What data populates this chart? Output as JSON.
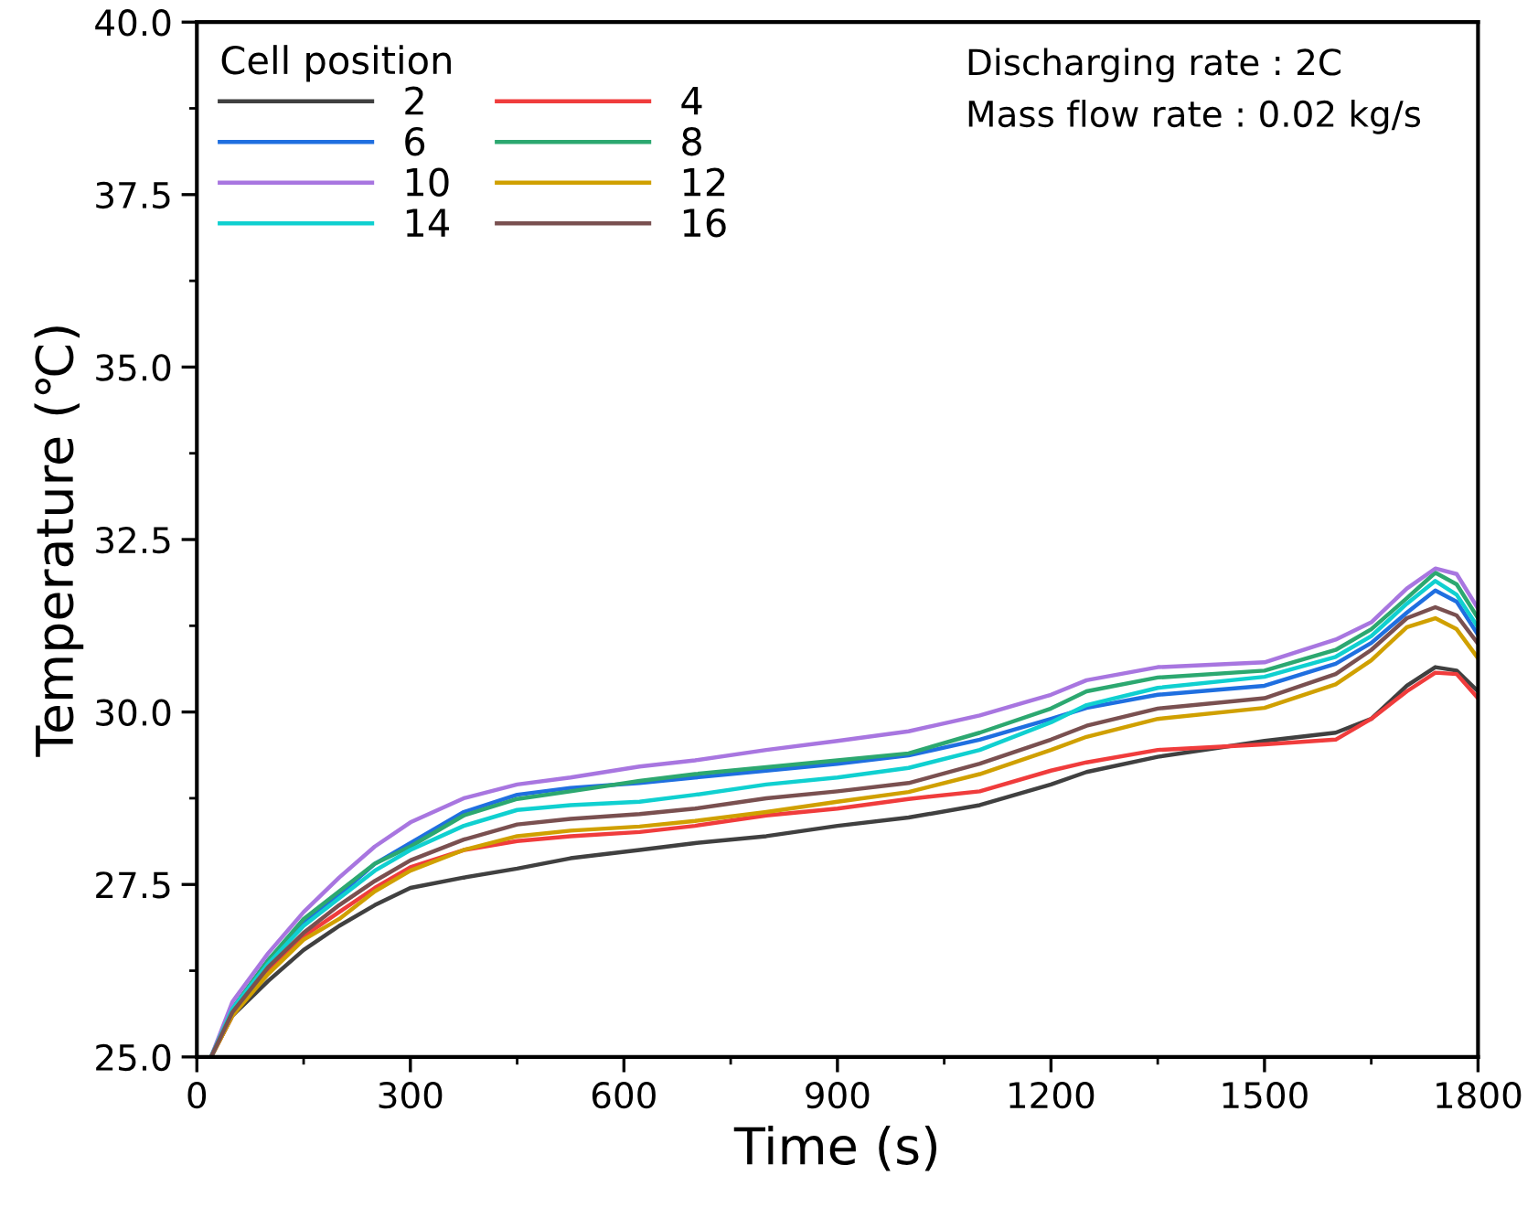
{
  "chart_data": {
    "type": "line",
    "xlabel": "Time (s)",
    "ylabel": "Temperature (℃)",
    "legend_title": "Cell position",
    "legend": "top left",
    "grid": false,
    "marker": "none",
    "line_style": "solid",
    "x": [
      20,
      50,
      100,
      150,
      200,
      250,
      300,
      375,
      450,
      525,
      622,
      700,
      800,
      900,
      1000,
      1100,
      1200,
      1250,
      1350,
      1500,
      1600,
      1650,
      1700,
      1740,
      1770,
      1800
    ],
    "xlim": [
      0,
      1800
    ],
    "xticks": [
      0,
      300,
      600,
      900,
      1200,
      1500,
      1800
    ],
    "ylim": [
      25.0,
      40.0
    ],
    "yticks": [
      {
        "value": 25,
        "label": "25.0"
      },
      27.5,
      {
        "value": 30,
        "label": "30.0"
      },
      32.5,
      {
        "value": 35,
        "label": "35.0"
      },
      37.5,
      {
        "value": 40,
        "label": "40.0"
      }
    ],
    "annotations": [
      "Discharging rate : 2C",
      "Mass flow rate : 0.02 kg/s"
    ],
    "series": [
      {
        "name": "2",
        "color": "#404040",
        "values": [
          25.0,
          25.6,
          26.1,
          26.55,
          26.9,
          27.2,
          27.45,
          27.6,
          27.73,
          27.88,
          28.0,
          28.1,
          28.2,
          28.35,
          28.47,
          28.65,
          28.95,
          29.13,
          29.35,
          29.58,
          29.7,
          29.9,
          30.38,
          30.65,
          30.6,
          30.3
        ]
      },
      {
        "name": "4",
        "color": "#f03c3c",
        "values": [
          25.0,
          25.6,
          26.25,
          26.75,
          27.1,
          27.45,
          27.75,
          28.0,
          28.13,
          28.2,
          28.26,
          28.35,
          28.5,
          28.6,
          28.74,
          28.85,
          29.15,
          29.27,
          29.45,
          29.53,
          29.6,
          29.9,
          30.3,
          30.57,
          30.55,
          30.2
        ]
      },
      {
        "name": "6",
        "color": "#1f6fe0",
        "values": [
          25.0,
          25.7,
          26.4,
          26.95,
          27.35,
          27.8,
          28.1,
          28.55,
          28.8,
          28.9,
          28.97,
          29.05,
          29.15,
          29.25,
          29.37,
          29.6,
          29.9,
          30.06,
          30.25,
          30.38,
          30.7,
          31.0,
          31.44,
          31.76,
          31.6,
          31.12
        ]
      },
      {
        "name": "8",
        "color": "#2ca870",
        "values": [
          25.0,
          25.7,
          26.4,
          27.0,
          27.4,
          27.8,
          28.05,
          28.5,
          28.74,
          28.85,
          29.0,
          29.1,
          29.2,
          29.3,
          29.4,
          29.7,
          30.05,
          30.3,
          30.5,
          30.6,
          30.9,
          31.2,
          31.65,
          32.02,
          31.85,
          31.36
        ]
      },
      {
        "name": "10",
        "color": "#a876e0",
        "values": [
          25.0,
          25.8,
          26.5,
          27.1,
          27.6,
          28.05,
          28.4,
          28.75,
          28.95,
          29.05,
          29.21,
          29.3,
          29.45,
          29.58,
          29.72,
          29.95,
          30.25,
          30.46,
          30.65,
          30.72,
          31.05,
          31.3,
          31.79,
          32.08,
          32.0,
          31.5
        ]
      },
      {
        "name": "12",
        "color": "#d0a000",
        "values": [
          25.0,
          25.6,
          26.2,
          26.7,
          27.0,
          27.4,
          27.7,
          28.0,
          28.2,
          28.28,
          28.34,
          28.42,
          28.55,
          28.7,
          28.84,
          29.1,
          29.45,
          29.64,
          29.9,
          30.06,
          30.4,
          30.75,
          31.23,
          31.36,
          31.2,
          30.78
        ]
      },
      {
        "name": "14",
        "color": "#10d0d0",
        "values": [
          25.0,
          25.7,
          26.35,
          26.9,
          27.3,
          27.7,
          28.0,
          28.35,
          28.58,
          28.65,
          28.7,
          28.8,
          28.95,
          29.05,
          29.19,
          29.45,
          29.85,
          30.1,
          30.35,
          30.51,
          30.8,
          31.1,
          31.57,
          31.9,
          31.7,
          31.23
        ]
      },
      {
        "name": "16",
        "color": "#7a5050",
        "values": [
          25.0,
          25.65,
          26.3,
          26.8,
          27.2,
          27.55,
          27.85,
          28.15,
          28.37,
          28.45,
          28.52,
          28.6,
          28.75,
          28.85,
          28.97,
          29.25,
          29.6,
          29.8,
          30.05,
          30.2,
          30.55,
          30.9,
          31.36,
          31.52,
          31.4,
          30.99
        ]
      }
    ]
  }
}
